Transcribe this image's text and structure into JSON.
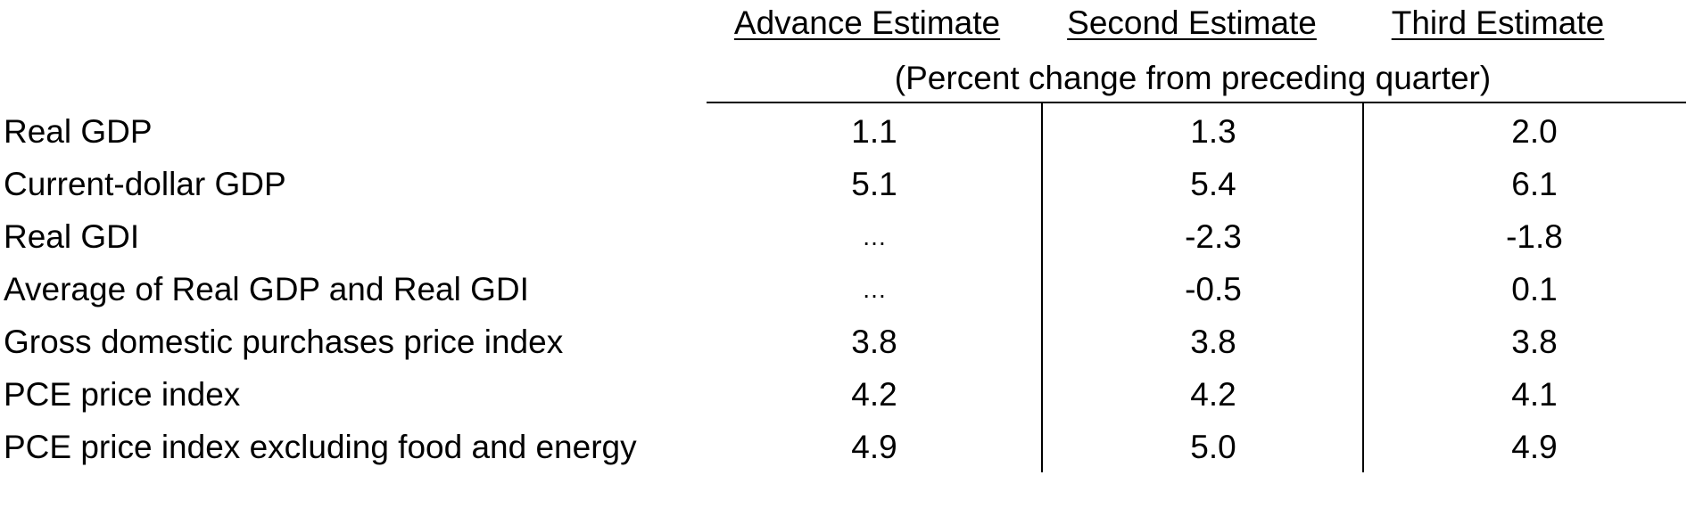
{
  "table": {
    "columns": [
      "Advance Estimate",
      "Second Estimate",
      "Third Estimate"
    ],
    "subheader": "(Percent change from preceding quarter)",
    "rows": [
      {
        "label": "Real GDP",
        "values": [
          "1.1",
          "1.3",
          "2.0"
        ]
      },
      {
        "label": "Current-dollar GDP",
        "values": [
          "5.1",
          "5.4",
          "6.1"
        ]
      },
      {
        "label": "Real GDI",
        "values": [
          "…",
          "-2.3",
          "-1.8"
        ]
      },
      {
        "label": "Average of Real GDP and Real GDI",
        "values": [
          "…",
          "-0.5",
          "0.1"
        ]
      },
      {
        "label": "Gross domestic purchases price index",
        "values": [
          "3.8",
          "3.8",
          "3.8"
        ]
      },
      {
        "label": "PCE price index",
        "values": [
          "4.2",
          "4.2",
          "4.1"
        ]
      },
      {
        "label": "PCE price index excluding food and energy",
        "values": [
          "4.9",
          "5.0",
          "4.9"
        ]
      }
    ]
  }
}
